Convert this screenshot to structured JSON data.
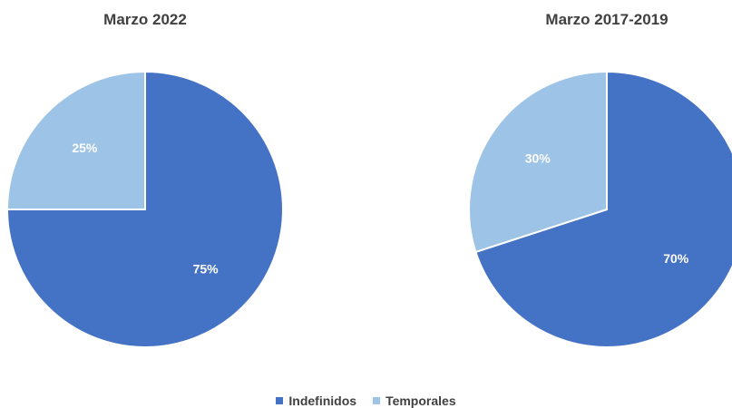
{
  "chart_data": [
    {
      "type": "pie",
      "title": "Marzo 2022",
      "categories": [
        "Indefinidos",
        "Temporales"
      ],
      "values": [
        75,
        25
      ],
      "labels": [
        "75%",
        "25%"
      ]
    },
    {
      "type": "pie",
      "title": "Marzo 2017-2019",
      "categories": [
        "Indefinidos",
        "Temporales"
      ],
      "values": [
        70,
        30
      ],
      "labels": [
        "70%",
        "30%"
      ]
    }
  ],
  "legend": {
    "position": "bottom",
    "items": [
      {
        "label": "Indefinidos",
        "color": "#4472C4"
      },
      {
        "label": "Temporales",
        "color": "#9DC3E6"
      }
    ]
  }
}
